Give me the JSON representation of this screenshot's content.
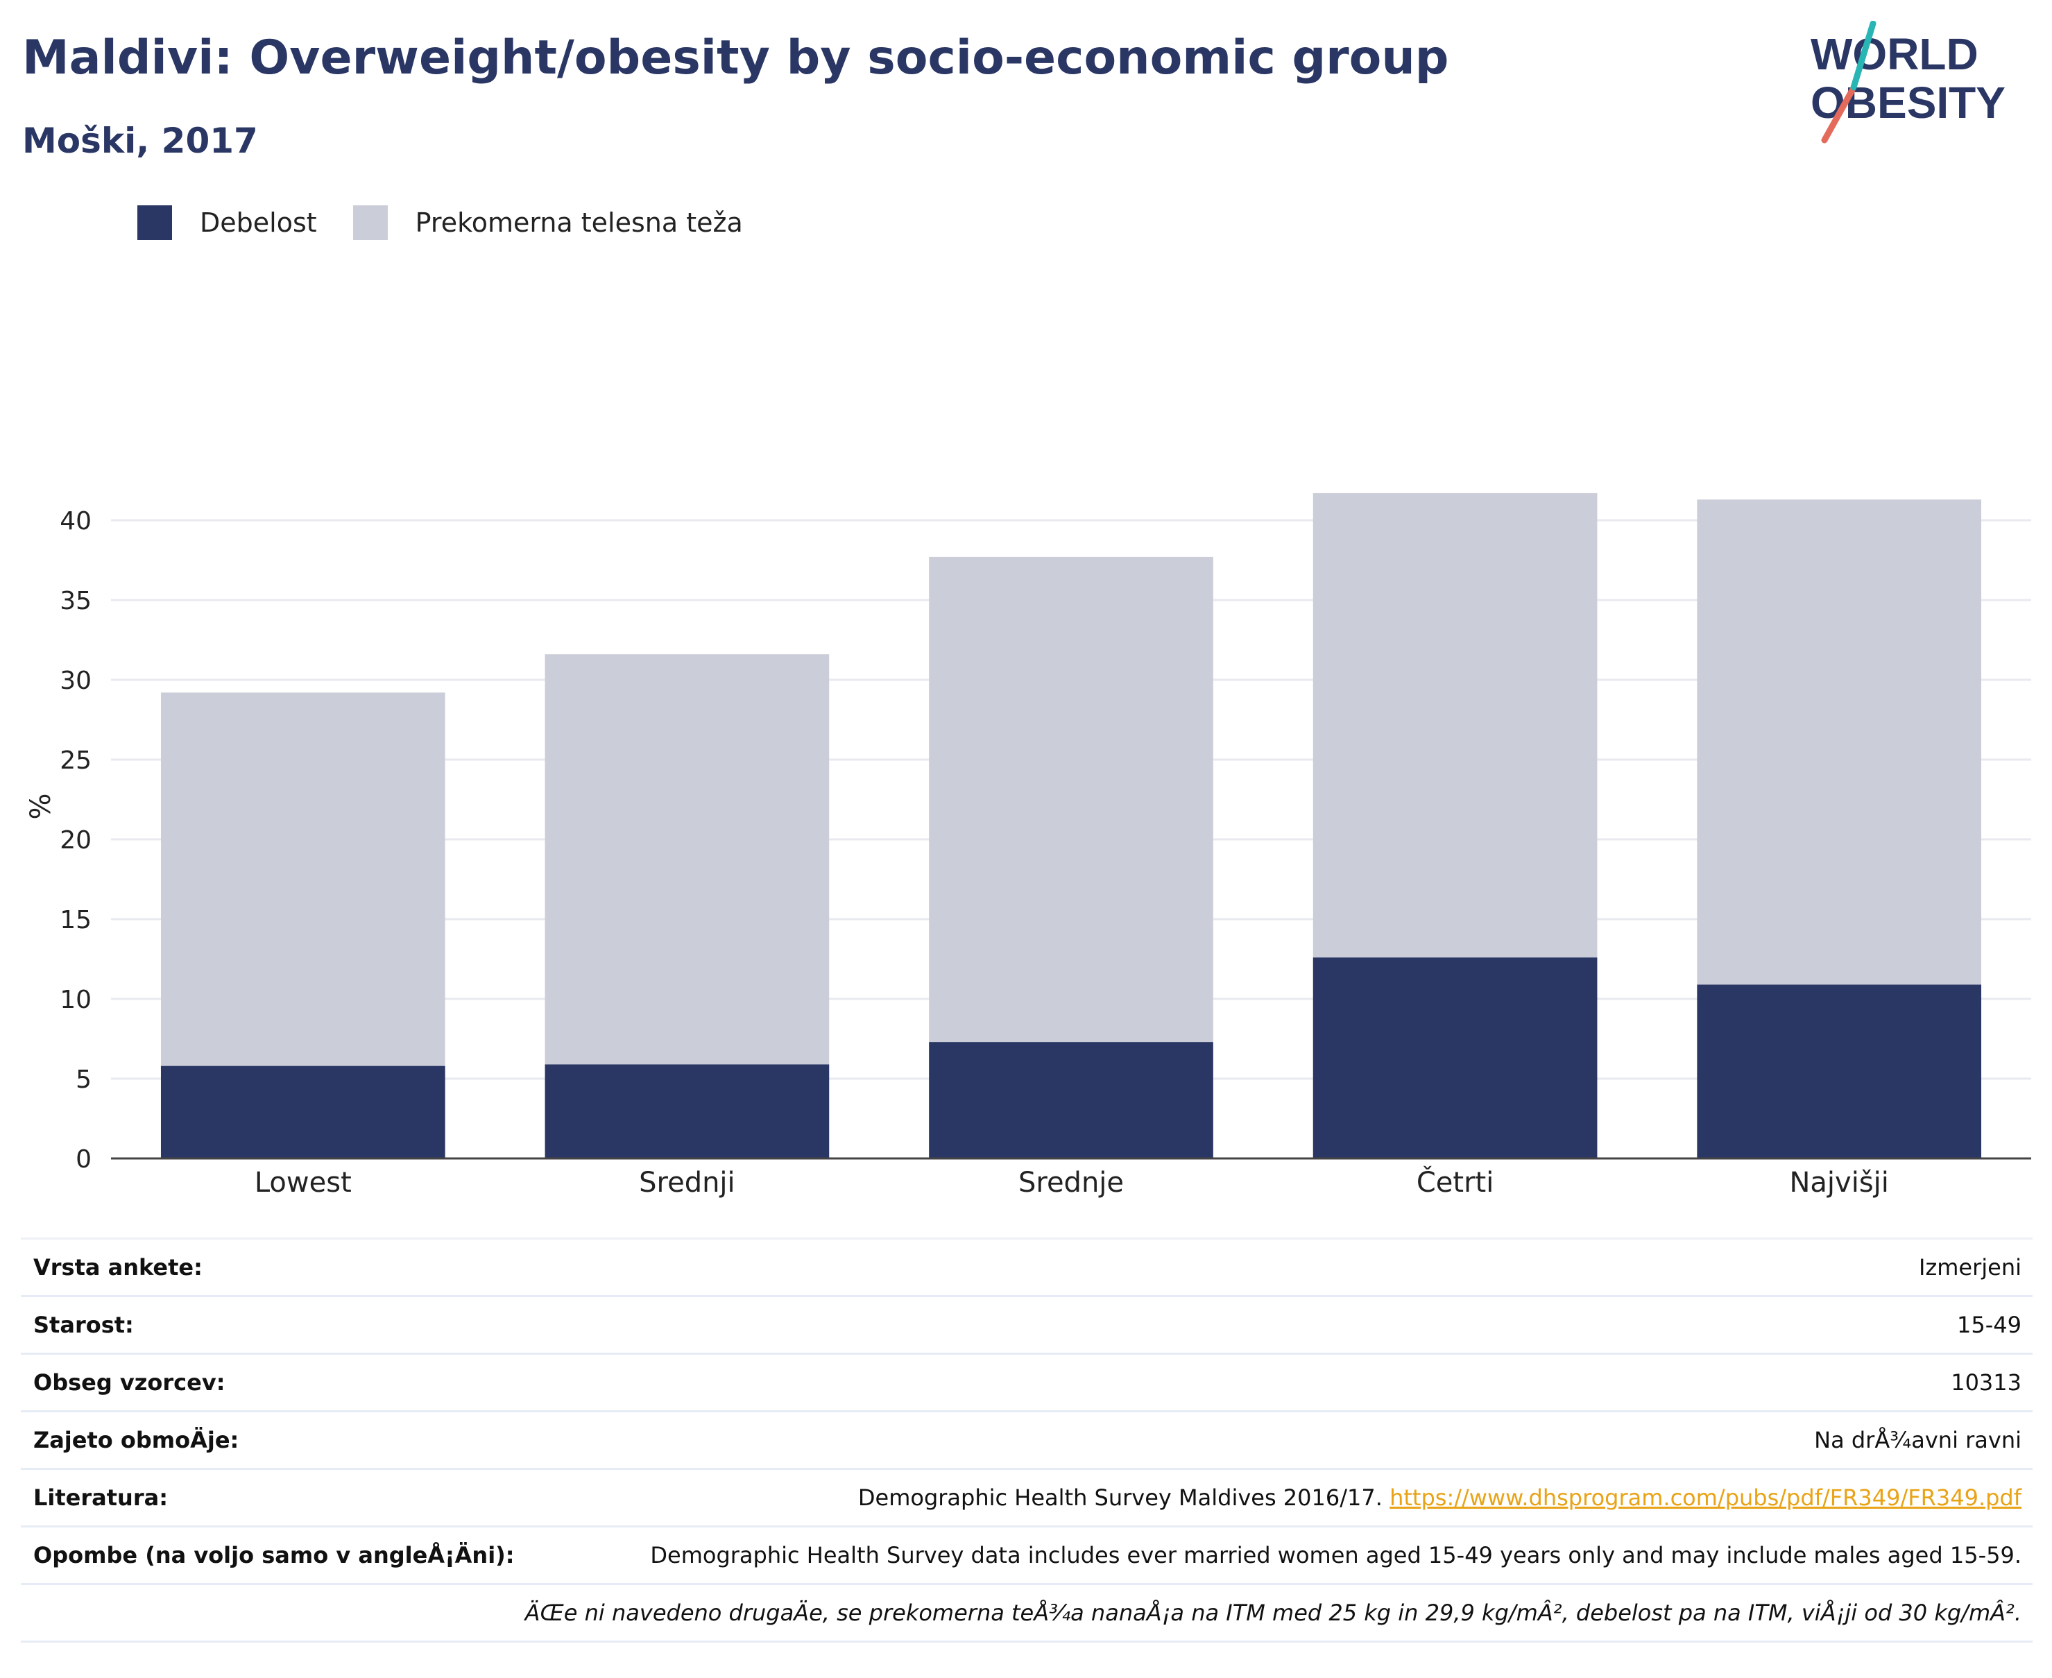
{
  "header": {
    "title": "Maldivi: Overweight/obesity by socio-economic group",
    "subtitle": "Moški, 2017"
  },
  "logo": {
    "line1": "WORLD",
    "line2": "OBESITY"
  },
  "legend": [
    {
      "label": "Debelost",
      "color": "#2a3664"
    },
    {
      "label": "Prekomerna telesna teža",
      "color": "#cbcdd9"
    }
  ],
  "chart_data": {
    "type": "bar",
    "stacked": true,
    "categories": [
      "Lowest",
      "Srednji",
      "Srednje",
      "Četrti",
      "Najvišji"
    ],
    "series": [
      {
        "name": "Debelost",
        "color": "#2a3664",
        "values": [
          5.8,
          5.9,
          7.3,
          12.6,
          10.9
        ]
      },
      {
        "name": "Prekomerna telesna teža",
        "color": "#cbcdd9",
        "values": [
          23.4,
          25.7,
          30.4,
          29.1,
          30.4
        ]
      }
    ],
    "ylabel": "%",
    "xlabel": "",
    "ylim": [
      0,
      45
    ],
    "yticks": [
      0,
      5,
      10,
      15,
      20,
      25,
      30,
      35,
      40
    ],
    "grid": true
  },
  "info": {
    "rows": [
      {
        "label": "Vrsta ankete:",
        "value": "Izmerjeni"
      },
      {
        "label": "Starost:",
        "value": "15-49"
      },
      {
        "label": "Obseg vzorcev:",
        "value": "10313"
      },
      {
        "label": "Zajeto obmoÄje:",
        "value": "Na drÅ¾avni ravni"
      }
    ],
    "literature": {
      "label": "Literatura:",
      "text": "Demographic Health Survey Maldives 2016/17. ",
      "link": "https://www.dhsprogram.com/pubs/pdf/FR349/FR349.pdf"
    },
    "notes": {
      "label": "Opombe (na voljo samo v angleÅ¡Äni):",
      "value": "Demographic Health Survey data includes ever married women aged 15-49 years only and may include males aged 15-59."
    },
    "footnote": "ÄŒe ni navedeno drugaÄe, se prekomerna teÅ¾a nanaÅ¡a na ITM med 25 kg in 29,9 kg/mÂ², debelost pa na ITM, viÅ¡ji od 30 kg/mÂ²."
  }
}
